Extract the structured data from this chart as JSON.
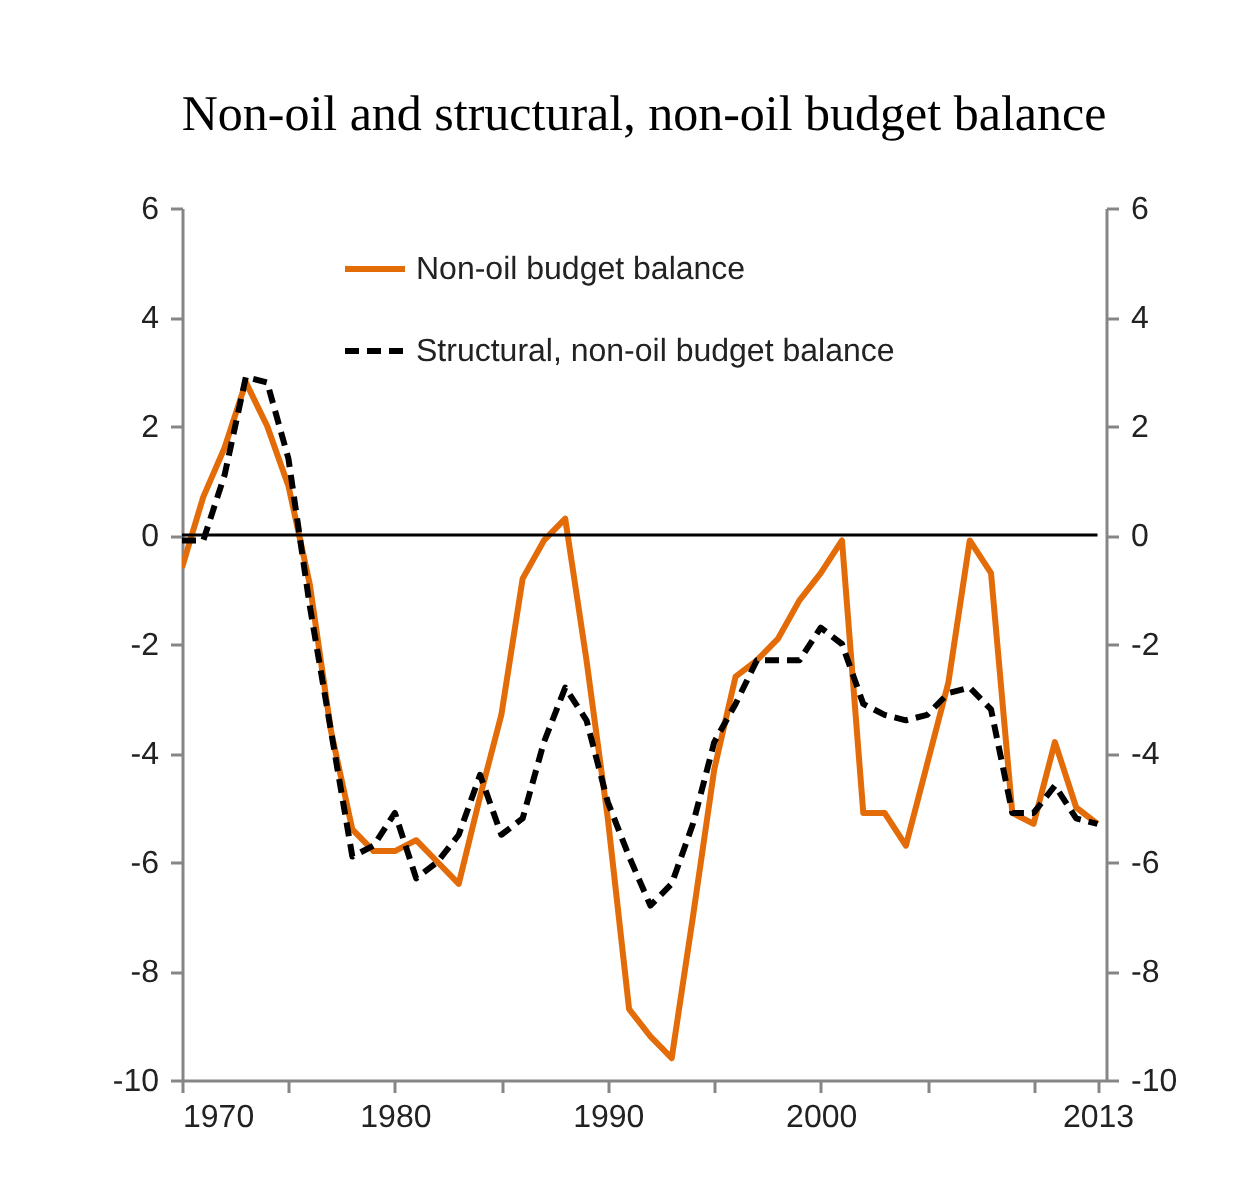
{
  "chart_data": {
    "type": "line",
    "title": "Non-oil and structural, non-oil budget balance",
    "x": [
      1970,
      1971,
      1972,
      1973,
      1974,
      1975,
      1976,
      1977,
      1978,
      1979,
      1980,
      1981,
      1982,
      1983,
      1984,
      1985,
      1986,
      1987,
      1988,
      1989,
      1990,
      1991,
      1992,
      1993,
      1994,
      1995,
      1996,
      1997,
      1998,
      1999,
      2000,
      2001,
      2002,
      2003,
      2004,
      2005,
      2006,
      2007,
      2008,
      2009,
      2010,
      2011,
      2012,
      2013
    ],
    "series": [
      {
        "name": "Non-oil budget balance",
        "color": "#e36c09",
        "line_style": "solid",
        "values": [
          -0.6,
          0.7,
          1.6,
          2.8,
          2.0,
          0.9,
          -0.9,
          -3.6,
          -5.4,
          -5.8,
          -5.8,
          -5.6,
          -6.0,
          -6.4,
          -4.8,
          -3.3,
          -0.8,
          -0.1,
          0.3,
          -2.3,
          -5.2,
          -8.7,
          -9.2,
          -9.6,
          -7.0,
          -4.3,
          -2.6,
          -2.3,
          -1.9,
          -1.2,
          -0.7,
          -0.1,
          -5.1,
          -5.1,
          -5.7,
          -4.2,
          -2.7,
          -0.1,
          -0.7,
          -5.1,
          -5.3,
          -3.8,
          -5.0,
          -5.3
        ]
      },
      {
        "name": "Structural, non-oil budget balance",
        "color": "#000000",
        "line_style": "dashed",
        "values": [
          -0.1,
          -0.1,
          1.1,
          2.9,
          2.8,
          1.4,
          -1.3,
          -3.6,
          -5.9,
          -5.7,
          -5.1,
          -6.3,
          -6.0,
          -5.5,
          -4.4,
          -5.5,
          -5.2,
          -3.8,
          -2.8,
          -3.4,
          -4.9,
          -5.9,
          -6.8,
          -6.4,
          -5.3,
          -3.8,
          -3.1,
          -2.3,
          -2.3,
          -2.3,
          -1.7,
          -2.0,
          -3.1,
          -3.3,
          -3.4,
          -3.3,
          -2.9,
          -2.8,
          -3.2,
          -5.1,
          -5.1,
          -4.6,
          -5.2,
          -5.3
        ]
      }
    ],
    "xlim": [
      1970,
      2013.4
    ],
    "xticks": [
      1970,
      {
        "value": 1975,
        "label": null
      },
      1980,
      {
        "value": 1985,
        "label": null
      },
      1990,
      {
        "value": 1995,
        "label": null
      },
      2000,
      {
        "value": 2005,
        "label": null
      },
      {
        "value": 2010,
        "label": null
      },
      2013
    ],
    "ylim": [
      -10,
      6
    ],
    "yticks": [
      -10,
      -8,
      -6,
      -4,
      -2,
      0,
      2,
      4,
      6
    ],
    "y2lim": [
      -10,
      6
    ],
    "y2ticks": [
      -10,
      -8,
      -6,
      -4,
      -2,
      0,
      2,
      4,
      6
    ],
    "ref_lines": [
      {
        "axis": "y",
        "value": 0,
        "color": "#000000"
      }
    ],
    "legend": "top",
    "grid": false
  }
}
